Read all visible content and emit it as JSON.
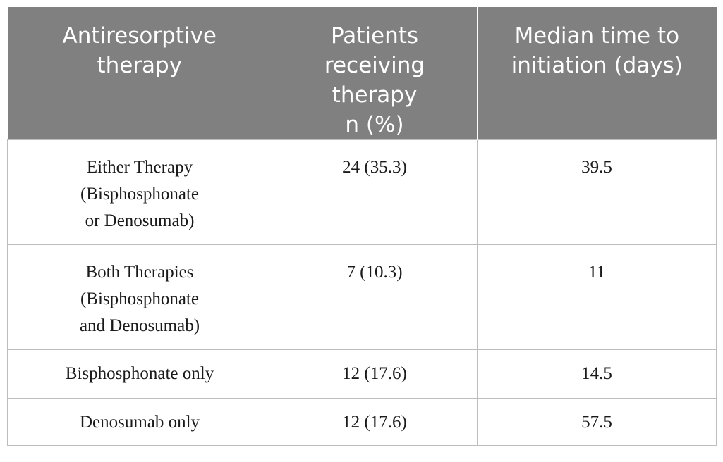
{
  "table": {
    "headers": [
      "Antiresorptive\ntherapy",
      "Patients\nreceiving\ntherapy\nn (%)",
      "Median time to\ninitiation (days)"
    ],
    "rows": [
      [
        "Either Therapy\n(Bisphosphonate\nor Denosumab)",
        "24 (35.3)",
        "39.5"
      ],
      [
        "Both Therapies\n(Bisphosphonate\nand Denosumab)",
        "7 (10.3)",
        "11"
      ],
      [
        "Bisphosphonate only",
        "12 (17.6)",
        "14.5"
      ],
      [
        "Denosumab only",
        "12 (17.6)",
        "57.5"
      ]
    ]
  }
}
